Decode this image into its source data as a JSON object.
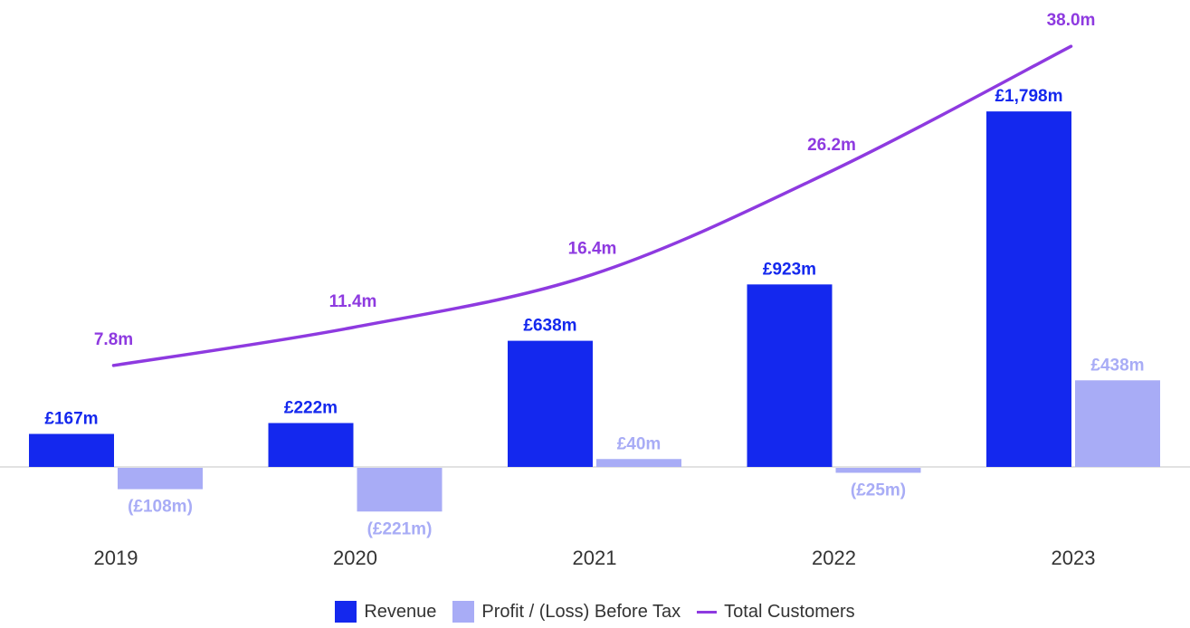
{
  "colors": {
    "revenue": "#1428ee",
    "profit": "#a8acf6",
    "customers": "#8e3ae0",
    "axis": "#e2e2e2"
  },
  "legend": {
    "revenue": "Revenue",
    "profit": "Profit / (Loss) Before Tax",
    "customers": "Total Customers"
  },
  "chart_data": {
    "type": "bar",
    "categories": [
      "2019",
      "2020",
      "2021",
      "2022",
      "2023"
    ],
    "series": [
      {
        "name": "Revenue",
        "unit": "£m",
        "values": [
          167,
          222,
          638,
          923,
          1798
        ],
        "labels": [
          "£167m",
          "£222m",
          "£638m",
          "£923m",
          "£1,798m"
        ]
      },
      {
        "name": "Profit / (Loss) Before Tax",
        "unit": "£m",
        "values": [
          -108,
          -221,
          40,
          -25,
          438
        ],
        "labels": [
          "(£108m)",
          "(£221m)",
          "£40m",
          "(£25m)",
          "£438m"
        ]
      },
      {
        "name": "Total Customers",
        "type": "line",
        "unit": "m",
        "values": [
          7.8,
          11.4,
          16.4,
          26.2,
          38.0
        ],
        "labels": [
          "7.8m",
          "11.4m",
          "16.4m",
          "26.2m",
          "38.0m"
        ]
      }
    ],
    "grid": false,
    "legend_position": "bottom"
  }
}
